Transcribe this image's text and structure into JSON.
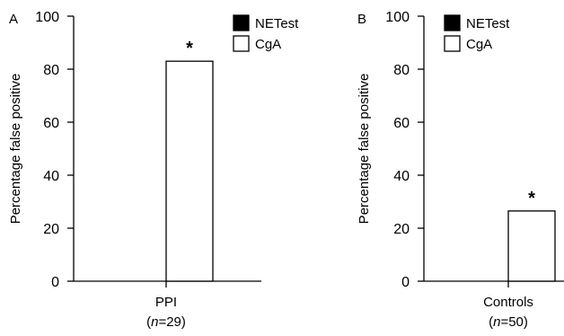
{
  "chart_data": [
    {
      "type": "bar",
      "panel_label": "A",
      "categories": [
        "PPI"
      ],
      "category_sublabels": [
        "(n=29)"
      ],
      "series": [
        {
          "name": "NETest",
          "values": [
            0
          ],
          "color": "#000000"
        },
        {
          "name": "CgA",
          "values": [
            83
          ],
          "color": "#ffffff"
        }
      ],
      "annotations": [
        {
          "series": "CgA",
          "category": "PPI",
          "text": "*"
        }
      ],
      "ylabel": "Percentage false positive",
      "xlabel": "",
      "ylim": [
        0,
        100
      ],
      "yticks": [
        0,
        20,
        40,
        60,
        80,
        100
      ],
      "grid": false,
      "legend_position": "top-right"
    },
    {
      "type": "bar",
      "panel_label": "B",
      "categories": [
        "Controls"
      ],
      "category_sublabels": [
        "(n=50)"
      ],
      "series": [
        {
          "name": "NETest",
          "values": [
            0
          ],
          "color": "#000000"
        },
        {
          "name": "CgA",
          "values": [
            26.5
          ],
          "color": "#ffffff"
        }
      ],
      "annotations": [
        {
          "series": "CgA",
          "category": "Controls",
          "text": "*"
        }
      ],
      "ylabel": "Percentage false positive",
      "xlabel": "",
      "ylim": [
        0,
        100
      ],
      "yticks": [
        0,
        20,
        40,
        60,
        80,
        100
      ],
      "grid": false,
      "legend_position": "top-right"
    }
  ]
}
